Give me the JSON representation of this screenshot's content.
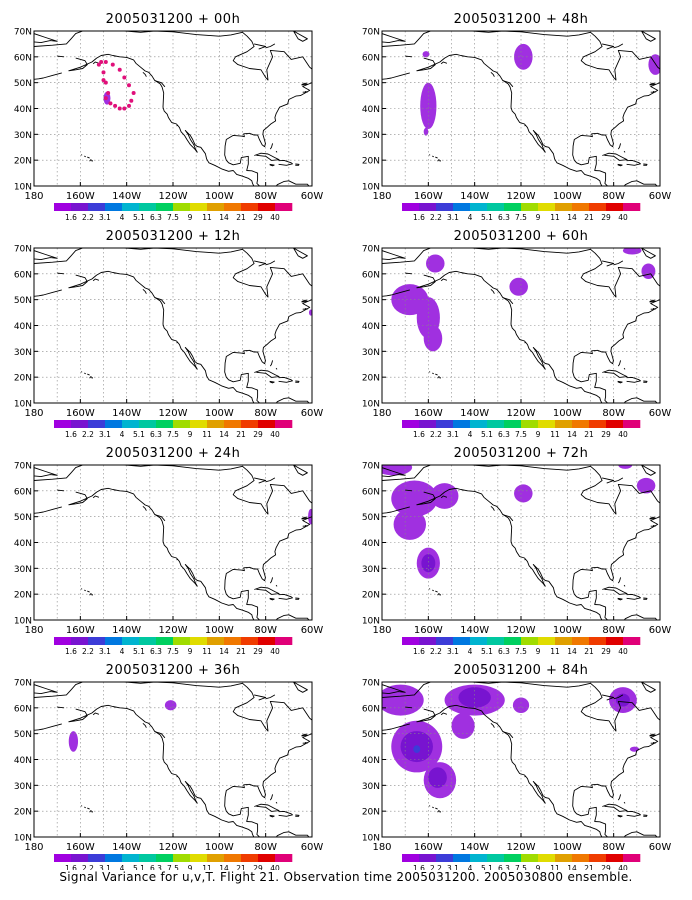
{
  "caption": "Signal Variance for u,v,T. Flight 21. Observation time 2005031200. 2005030800 ensemble.",
  "colors": {
    "frame": "#000000",
    "grid": "#888888",
    "coast": "#000000",
    "shade_light": "#a030e0",
    "shade_dark": "#7814d0",
    "shade_core": "#3c3cd8",
    "obs_dots": "#e0107a"
  },
  "chart_data": {
    "type": "map_panels",
    "xlim": [
      -180,
      -60
    ],
    "ylim": [
      10,
      70
    ],
    "x_ticks": [
      "180",
      "160W",
      "140W",
      "120W",
      "100W",
      "80W",
      "60W"
    ],
    "y_ticks": [
      "10N",
      "20N",
      "30N",
      "40N",
      "50N",
      "60N",
      "70N"
    ],
    "grid": true,
    "colorbar": {
      "levels": [
        "1.6",
        "2.2",
        "3.1",
        "4",
        "5.1",
        "6.3",
        "7.5",
        "9",
        "11",
        "14",
        "21",
        "29",
        "40"
      ],
      "colors": [
        "#a000e0",
        "#7814d0",
        "#3c3cd8",
        "#0078e0",
        "#00b4d0",
        "#00c8a0",
        "#00d060",
        "#a0dc00",
        "#e0dc00",
        "#e0a000",
        "#f07800",
        "#f03c00",
        "#e00000",
        "#e00078"
      ]
    },
    "panels": [
      {
        "title": "2005031200 + 00h",
        "col": 0,
        "row": 0,
        "obs": [
          [
            -152,
            57
          ],
          [
            -150,
            54
          ],
          [
            -149,
            50
          ],
          [
            -148,
            46
          ],
          [
            -147,
            42
          ],
          [
            -145,
            41
          ],
          [
            -143,
            40
          ],
          [
            -141,
            40
          ],
          [
            -139,
            41
          ],
          [
            -138,
            43
          ],
          [
            -137,
            46
          ],
          [
            -139,
            49
          ],
          [
            -141,
            52
          ],
          [
            -143,
            55
          ],
          [
            -146,
            57
          ],
          [
            -149,
            58
          ],
          [
            -151,
            58
          ],
          [
            -150,
            51
          ],
          [
            -149,
            44
          ]
        ],
        "blobs": [
          {
            "lon": -148.5,
            "lat": 44,
            "rx": 1.5,
            "ry": 2.5,
            "level": 0
          }
        ]
      },
      {
        "title": "2005031200 + 12h",
        "col": 0,
        "row": 1,
        "blobs": [
          {
            "lon": -60.5,
            "lat": 45,
            "rx": 0.8,
            "ry": 1.2,
            "level": 0
          }
        ]
      },
      {
        "title": "2005031200 + 24h",
        "col": 0,
        "row": 2,
        "blobs": [
          {
            "lon": -60.5,
            "lat": 50,
            "rx": 1.2,
            "ry": 3,
            "level": 0
          }
        ]
      },
      {
        "title": "2005031200 + 36h",
        "col": 0,
        "row": 3,
        "blobs": [
          {
            "lon": -163,
            "lat": 47,
            "rx": 2,
            "ry": 4,
            "level": 0
          },
          {
            "lon": -121,
            "lat": 61,
            "rx": 2.5,
            "ry": 2,
            "level": 0
          }
        ]
      },
      {
        "title": "2005031200 + 48h",
        "col": 1,
        "row": 0,
        "blobs": [
          {
            "lon": -160,
            "lat": 41,
            "rx": 3.5,
            "ry": 9,
            "level": 0
          },
          {
            "lon": -161,
            "lat": 31,
            "rx": 1,
            "ry": 1.5,
            "level": 0
          },
          {
            "lon": -161,
            "lat": 61,
            "rx": 1.5,
            "ry": 1.2,
            "level": 0
          },
          {
            "lon": -119,
            "lat": 60,
            "rx": 4,
            "ry": 5,
            "level": 0
          },
          {
            "lon": -62,
            "lat": 57,
            "rx": 3,
            "ry": 4,
            "level": 0
          }
        ]
      },
      {
        "title": "2005031200 + 60h",
        "col": 1,
        "row": 1,
        "blobs": [
          {
            "lon": -168,
            "lat": 50,
            "rx": 8,
            "ry": 6,
            "level": 0
          },
          {
            "lon": -160,
            "lat": 43,
            "rx": 5,
            "ry": 8,
            "level": 0
          },
          {
            "lon": -158,
            "lat": 35,
            "rx": 4,
            "ry": 5,
            "level": 0
          },
          {
            "lon": -157,
            "lat": 64,
            "rx": 4,
            "ry": 3.5,
            "level": 0
          },
          {
            "lon": -121,
            "lat": 55,
            "rx": 4,
            "ry": 3.5,
            "level": 0
          },
          {
            "lon": -65,
            "lat": 61,
            "rx": 3,
            "ry": 3,
            "level": 0
          },
          {
            "lon": -72,
            "lat": 69,
            "rx": 4,
            "ry": 1.5,
            "level": 0
          }
        ]
      },
      {
        "title": "2005031200 + 72h",
        "col": 1,
        "row": 2,
        "blobs": [
          {
            "lon": -175,
            "lat": 69,
            "rx": 8,
            "ry": 3,
            "level": 0
          },
          {
            "lon": -166,
            "lat": 57,
            "rx": 10,
            "ry": 7,
            "level": 0
          },
          {
            "lon": -168,
            "lat": 47,
            "rx": 7,
            "ry": 6,
            "level": 0
          },
          {
            "lon": -153,
            "lat": 58,
            "rx": 6,
            "ry": 5,
            "level": 0
          },
          {
            "lon": -160,
            "lat": 32,
            "rx": 5,
            "ry": 6,
            "level": 0
          },
          {
            "lon": -160,
            "lat": 32,
            "rx": 3,
            "ry": 3.5,
            "level": 1
          },
          {
            "lon": -119,
            "lat": 59,
            "rx": 4,
            "ry": 3.5,
            "level": 0
          },
          {
            "lon": -66,
            "lat": 62,
            "rx": 4,
            "ry": 3,
            "level": 0
          },
          {
            "lon": -75,
            "lat": 70,
            "rx": 3,
            "ry": 1.5,
            "level": 0
          }
        ]
      },
      {
        "title": "2005031200 + 84h",
        "col": 1,
        "row": 3,
        "blobs": [
          {
            "lon": -172,
            "lat": 63,
            "rx": 10,
            "ry": 6,
            "level": 0
          },
          {
            "lon": -140,
            "lat": 63,
            "rx": 13,
            "ry": 6,
            "level": 0
          },
          {
            "lon": -140,
            "lat": 64,
            "rx": 7,
            "ry": 4,
            "level": 1
          },
          {
            "lon": -165,
            "lat": 45,
            "rx": 11,
            "ry": 10,
            "level": 0
          },
          {
            "lon": -165,
            "lat": 45,
            "rx": 7,
            "ry": 6,
            "level": 1
          },
          {
            "lon": -165,
            "lat": 44,
            "rx": 1.5,
            "ry": 1.5,
            "level": 2
          },
          {
            "lon": -155,
            "lat": 32,
            "rx": 7,
            "ry": 7,
            "level": 0
          },
          {
            "lon": -156,
            "lat": 33,
            "rx": 4,
            "ry": 4,
            "level": 1
          },
          {
            "lon": -145,
            "lat": 53,
            "rx": 5,
            "ry": 5,
            "level": 0
          },
          {
            "lon": -120,
            "lat": 61,
            "rx": 3.5,
            "ry": 3,
            "level": 0
          },
          {
            "lon": -76,
            "lat": 63,
            "rx": 6,
            "ry": 5,
            "level": 0
          },
          {
            "lon": -76,
            "lat": 63,
            "rx": 3,
            "ry": 2.5,
            "level": 1
          },
          {
            "lon": -71,
            "lat": 44,
            "rx": 2,
            "ry": 1,
            "level": 0
          }
        ]
      }
    ]
  }
}
